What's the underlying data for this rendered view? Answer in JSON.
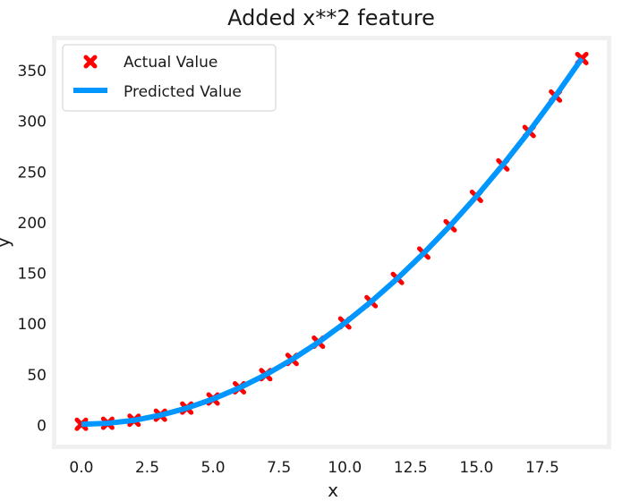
{
  "chart_data": {
    "type": "scatter",
    "title": "Added x**2 feature",
    "xlabel": "x",
    "ylabel": "y",
    "xlim": [
      -0.95,
      19.95
    ],
    "ylim": [
      -19.05,
      380.05
    ],
    "xticks": [
      0.0,
      2.5,
      5.0,
      7.5,
      10.0,
      12.5,
      15.0,
      17.5
    ],
    "xtick_labels": [
      "0.0",
      "2.5",
      "5.0",
      "7.5",
      "10.0",
      "12.5",
      "15.0",
      "17.5"
    ],
    "yticks": [
      0,
      50,
      100,
      150,
      200,
      250,
      300,
      350
    ],
    "ytick_labels": [
      "0",
      "50",
      "100",
      "150",
      "200",
      "250",
      "300",
      "350"
    ],
    "grid": false,
    "legend_position": "top-left",
    "series": [
      {
        "name": "Actual Value",
        "kind": "scatter",
        "marker": "x",
        "color": "#ff0000",
        "x": [
          0,
          1,
          2,
          3,
          4,
          5,
          6,
          7,
          8,
          9,
          10,
          11,
          12,
          13,
          14,
          15,
          16,
          17,
          18,
          19
        ],
        "y": [
          1,
          2,
          5,
          10,
          17,
          26,
          37,
          50,
          65,
          82,
          101,
          122,
          145,
          170,
          197,
          226,
          257,
          290,
          325,
          362
        ]
      },
      {
        "name": "Predicted Value",
        "kind": "line",
        "color": "#0096ff",
        "x": [
          0,
          1,
          2,
          3,
          4,
          5,
          6,
          7,
          8,
          9,
          10,
          11,
          12,
          13,
          14,
          15,
          16,
          17,
          18,
          19
        ],
        "y": [
          1,
          2,
          5,
          10,
          17,
          26,
          37,
          50,
          65,
          82,
          101,
          122,
          145,
          170,
          197,
          226,
          257,
          290,
          325,
          362
        ]
      }
    ]
  }
}
